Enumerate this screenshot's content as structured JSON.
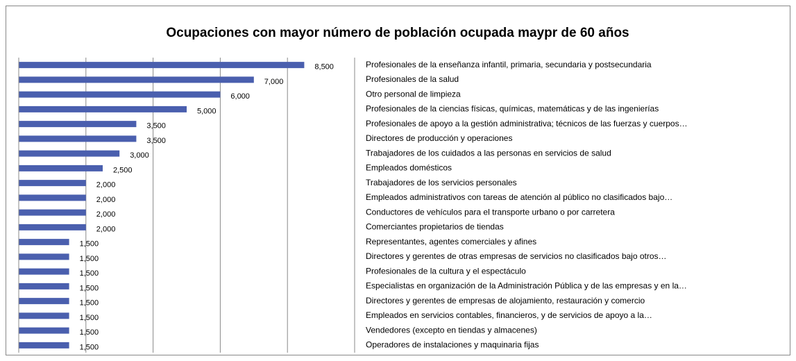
{
  "chart_data": {
    "type": "barh",
    "title": "Ocupaciones con mayor número de población ocupada maypr de 60 años",
    "categories": [
      "Profesionales de la enseñanza infantil, primaria, secundaria y postsecundaria",
      "Profesionales de la salud",
      "Otro personal de limpieza",
      "Profesionales de la ciencias físicas, químicas, matemáticas y de las ingenierías",
      "Profesionales de apoyo a la gestión administrativa; técnicos de las fuerzas y cuerpos…",
      "Directores de producción y operaciones",
      "Trabajadores de los cuidados a las personas en servicios de salud",
      "Empleados domésticos",
      "Trabajadores de los servicios personales",
      "Empleados administrativos con tareas de atención al público no clasificados bajo…",
      "Conductores de vehículos para el transporte urbano o por carretera",
      "Comerciantes propietarios de tiendas",
      "Representantes, agentes comerciales y afines",
      "Directores y gerentes de otras empresas de servicios no clasificados bajo otros…",
      "Profesionales de la cultura y el espectáculo",
      "Especialistas en organización de la Administración Pública y de las empresas y en la…",
      "Directores y gerentes de empresas de alojamiento, restauración y comercio",
      "Empleados en servicios contables, financieros, y de servicios de apoyo a la…",
      "Vendedores (excepto en tiendas y almacenes)",
      "Operadores de instalaciones y maquinaria fijas"
    ],
    "values": [
      8500,
      7000,
      6000,
      5000,
      3500,
      3500,
      3000,
      2500,
      2000,
      2000,
      2000,
      2000,
      1500,
      1500,
      1500,
      1500,
      1500,
      1500,
      1500,
      1500
    ],
    "value_labels": [
      "8,500",
      "7,000",
      "6,000",
      "5,000",
      "3,500",
      "3,500",
      "3,000",
      "2,500",
      "2,000",
      "2,000",
      "2,000",
      "2,000",
      "1,500",
      "1,500",
      "1,500",
      "1,500",
      "1,500",
      "1,500",
      "1,500",
      "1,500"
    ],
    "color": "#4a5fae",
    "xlim": [
      0,
      10000
    ],
    "xticks": [
      0,
      2000,
      4000,
      6000,
      8000,
      10000
    ],
    "grid": true
  }
}
